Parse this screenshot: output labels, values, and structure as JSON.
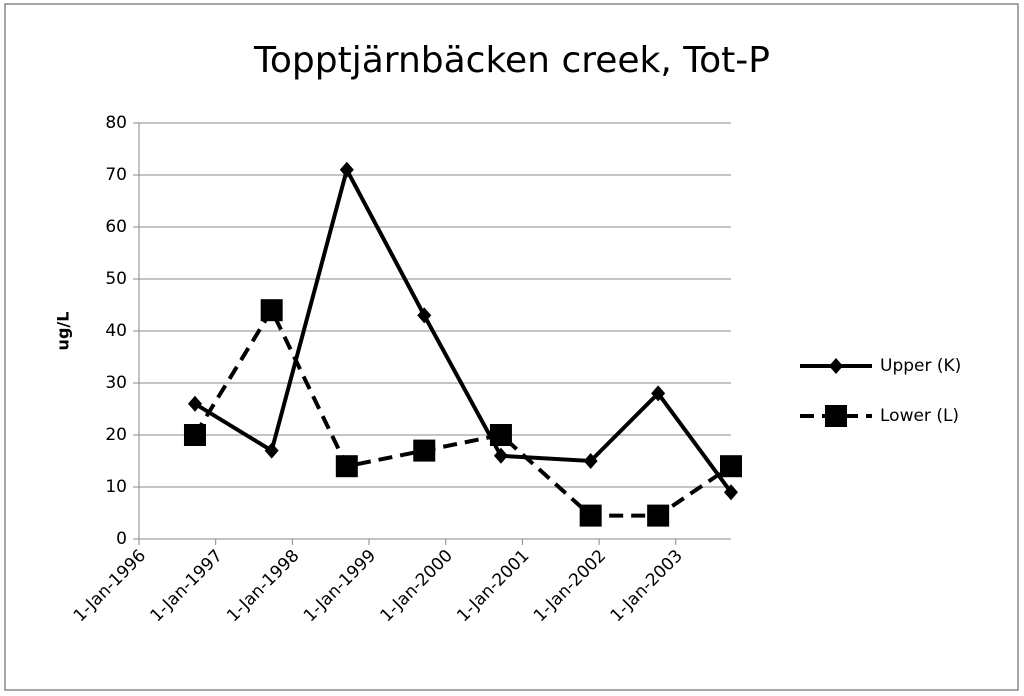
{
  "chart_data": {
    "type": "line",
    "title": "Topptjärnbäcken creek, Tot-P",
    "y_label": "ug/L",
    "x": [
      1996.73,
      1997.73,
      1998.71,
      1999.72,
      2000.72,
      2001.89,
      2002.77,
      2003.72
    ],
    "series": [
      {
        "name": "Upper (K)",
        "color": "#000000",
        "marker": "diamond",
        "dashed": false,
        "values": [
          26,
          17,
          71,
          43,
          16,
          15,
          28,
          9
        ]
      },
      {
        "name": "Lower (L)",
        "color": "#000000",
        "marker": "square",
        "dashed": true,
        "values": [
          20,
          44,
          14,
          17,
          20,
          4.5,
          4.5,
          14
        ]
      }
    ],
    "xlim": [
      1996,
      2003.72
    ],
    "xticks": [
      {
        "value": 1996,
        "label": "1-Jan-1996"
      },
      {
        "value": 1997,
        "label": "1-Jan-1997"
      },
      {
        "value": 1998,
        "label": "1-Jan-1998"
      },
      {
        "value": 1999,
        "label": "1-Jan-1999"
      },
      {
        "value": 2000,
        "label": "1-Jan-2000"
      },
      {
        "value": 2001,
        "label": "1-Jan-2001"
      },
      {
        "value": 2002,
        "label": "1-Jan-2002"
      },
      {
        "value": 2003,
        "label": "1-Jan-2003"
      }
    ],
    "ylim": [
      0,
      80
    ],
    "yticks": [
      0,
      10,
      20,
      30,
      40,
      50,
      60,
      70,
      80
    ],
    "grid": true,
    "legend": "right"
  }
}
